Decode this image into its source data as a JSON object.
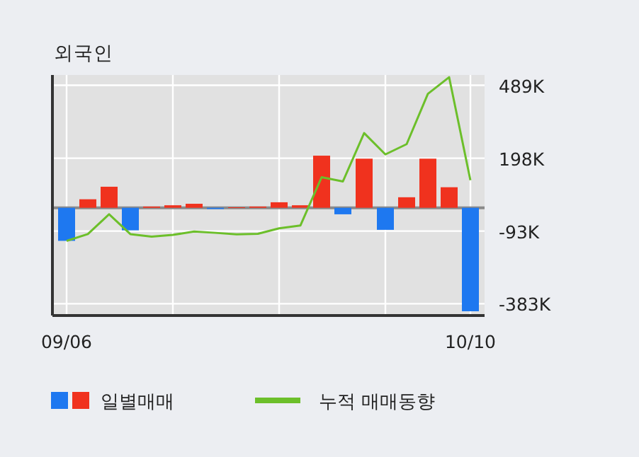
{
  "chart_data": {
    "type": "bar",
    "title": "외국인",
    "categories": [
      "09/06",
      null,
      null,
      null,
      null,
      null,
      null,
      null,
      null,
      null,
      null,
      null,
      null,
      null,
      null,
      null,
      null,
      null,
      null,
      "10/10"
    ],
    "series": [
      {
        "name": "일별매매",
        "colors": [
          "#1e78f0",
          "#f0321e",
          "#f0321e",
          "#1e78f0",
          "#f0321e",
          "#f0321e",
          "#f0321e",
          "#1e78f0",
          "#f0321e",
          "#f0321e",
          "#f0321e",
          "#f0321e",
          "#f0321e",
          "#1e78f0",
          "#f0321e",
          "#1e78f0",
          "#f0321e",
          "#f0321e",
          "#f0321e",
          "#1e78f0"
        ],
        "values": [
          -132,
          34,
          84,
          -90,
          5,
          10,
          16,
          -5,
          2,
          5,
          22,
          10,
          208,
          -26,
          196,
          -88,
          42,
          196,
          82,
          -413
        ]
      },
      {
        "type": "line",
        "name": "누적 매매동향",
        "color": "#6cbf2a",
        "values": [
          -132,
          -105,
          -26,
          -105,
          -115,
          -108,
          -95,
          -100,
          -106,
          -104,
          -82,
          -71,
          122,
          105,
          298,
          213,
          254,
          455,
          521,
          110
        ]
      }
    ],
    "ylim": [
      -430,
      530
    ],
    "yticks": [
      {
        "value": 489,
        "label": "489K"
      },
      {
        "value": 198,
        "label": "198K"
      },
      {
        "value": -93,
        "label": "-93K"
      },
      {
        "value": -383,
        "label": "-383K"
      }
    ],
    "grid": true,
    "legend": "bottom"
  }
}
